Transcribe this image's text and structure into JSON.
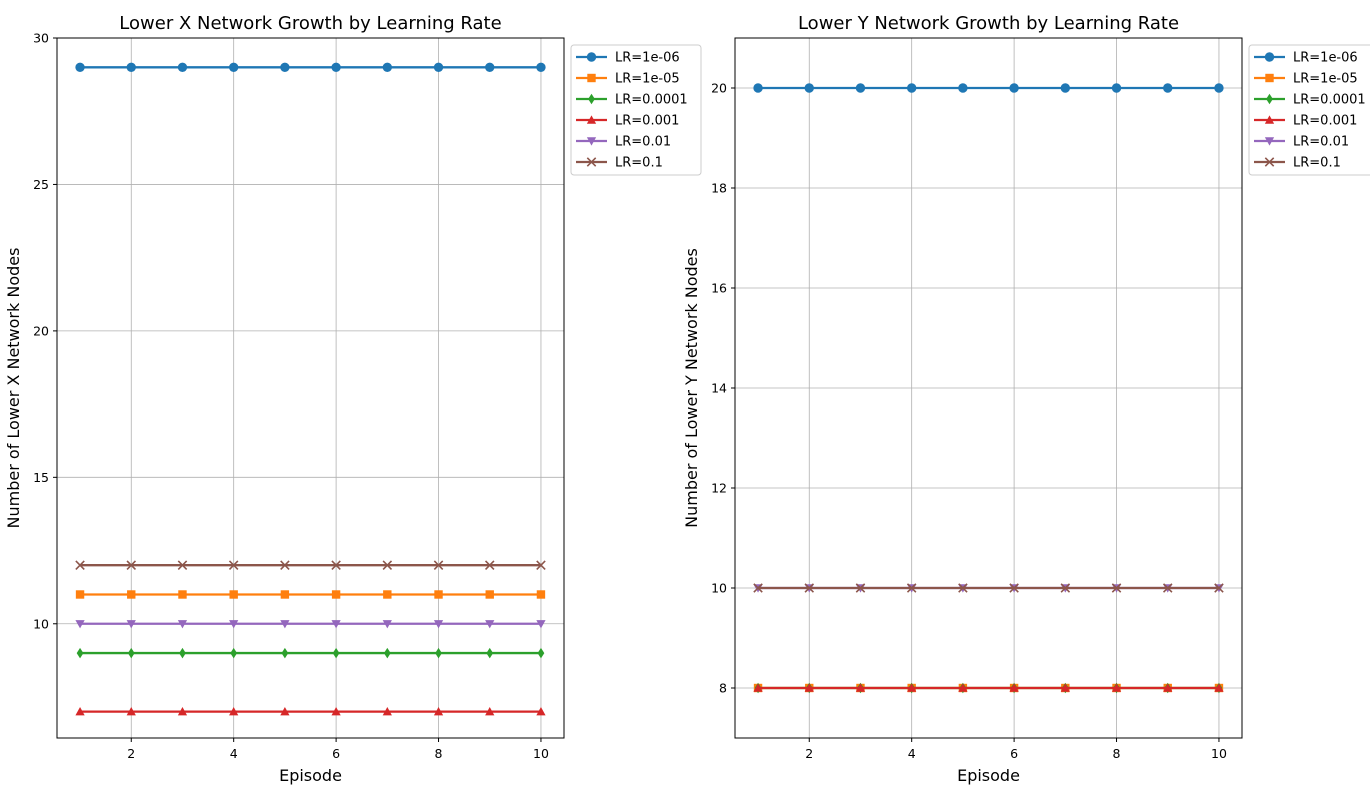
{
  "chart_data": [
    {
      "type": "line",
      "title": "Lower X Network Growth by Learning Rate",
      "xlabel": "Episode",
      "ylabel": "Number of Lower X Network Nodes",
      "x": [
        1,
        2,
        3,
        4,
        5,
        6,
        7,
        8,
        9,
        10
      ],
      "xlim": [
        0.55,
        10.45
      ],
      "ylim": [
        6.1,
        30
      ],
      "xticks": [
        2,
        4,
        6,
        8,
        10
      ],
      "yticks": [
        10,
        15,
        20,
        25,
        30
      ],
      "grid": true,
      "legend_position": "outside-upper-right",
      "series": [
        {
          "name": "LR=1e-06",
          "color": "#1f77b4",
          "marker": "circle",
          "values": [
            29,
            29,
            29,
            29,
            29,
            29,
            29,
            29,
            29,
            29
          ]
        },
        {
          "name": "LR=1e-05",
          "color": "#ff7f0e",
          "marker": "square",
          "values": [
            11,
            11,
            11,
            11,
            11,
            11,
            11,
            11,
            11,
            11
          ]
        },
        {
          "name": "LR=0.0001",
          "color": "#2ca02c",
          "marker": "diamond",
          "values": [
            9,
            9,
            9,
            9,
            9,
            9,
            9,
            9,
            9,
            9
          ]
        },
        {
          "name": "LR=0.001",
          "color": "#d62728",
          "marker": "triangle-up",
          "values": [
            7,
            7,
            7,
            7,
            7,
            7,
            7,
            7,
            7,
            7
          ]
        },
        {
          "name": "LR=0.01",
          "color": "#9467bd",
          "marker": "triangle-down",
          "values": [
            10,
            10,
            10,
            10,
            10,
            10,
            10,
            10,
            10,
            10
          ]
        },
        {
          "name": "LR=0.1",
          "color": "#8c564b",
          "marker": "x",
          "values": [
            12,
            12,
            12,
            12,
            12,
            12,
            12,
            12,
            12,
            12
          ]
        }
      ]
    },
    {
      "type": "line",
      "title": "Lower Y Network Growth by Learning Rate",
      "xlabel": "Episode",
      "ylabel": "Number of Lower Y Network Nodes",
      "x": [
        1,
        2,
        3,
        4,
        5,
        6,
        7,
        8,
        9,
        10
      ],
      "xlim": [
        0.55,
        10.45
      ],
      "ylim": [
        7,
        21
      ],
      "xticks": [
        2,
        4,
        6,
        8,
        10
      ],
      "yticks": [
        8,
        10,
        12,
        14,
        16,
        18,
        20
      ],
      "grid": true,
      "legend_position": "outside-upper-right",
      "series": [
        {
          "name": "LR=1e-06",
          "color": "#1f77b4",
          "marker": "circle",
          "values": [
            20,
            20,
            20,
            20,
            20,
            20,
            20,
            20,
            20,
            20
          ]
        },
        {
          "name": "LR=1e-05",
          "color": "#ff7f0e",
          "marker": "square",
          "values": [
            8,
            8,
            8,
            8,
            8,
            8,
            8,
            8,
            8,
            8
          ]
        },
        {
          "name": "LR=0.0001",
          "color": "#2ca02c",
          "marker": "diamond",
          "values": [
            8,
            8,
            8,
            8,
            8,
            8,
            8,
            8,
            8,
            8
          ]
        },
        {
          "name": "LR=0.001",
          "color": "#d62728",
          "marker": "triangle-up",
          "values": [
            8,
            8,
            8,
            8,
            8,
            8,
            8,
            8,
            8,
            8
          ]
        },
        {
          "name": "LR=0.01",
          "color": "#9467bd",
          "marker": "triangle-down",
          "values": [
            10,
            10,
            10,
            10,
            10,
            10,
            10,
            10,
            10,
            10
          ]
        },
        {
          "name": "LR=0.1",
          "color": "#8c564b",
          "marker": "x",
          "values": [
            10,
            10,
            10,
            10,
            10,
            10,
            10,
            10,
            10,
            10
          ]
        }
      ]
    }
  ]
}
